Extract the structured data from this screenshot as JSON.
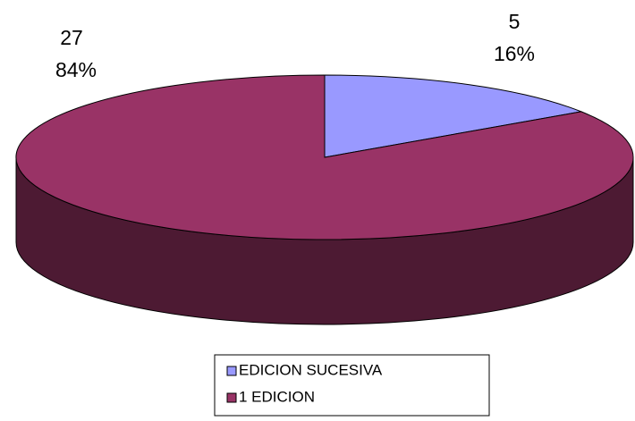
{
  "chart_data": {
    "type": "pie",
    "categories": [
      "EDICION SUCESIVA",
      "1 EDICION"
    ],
    "values": [
      5,
      27
    ],
    "percents": [
      16,
      84
    ],
    "percent_labels": [
      "16%",
      "84%"
    ],
    "colors": [
      "#9999ff",
      "#993366"
    ],
    "legend": "bottom"
  }
}
